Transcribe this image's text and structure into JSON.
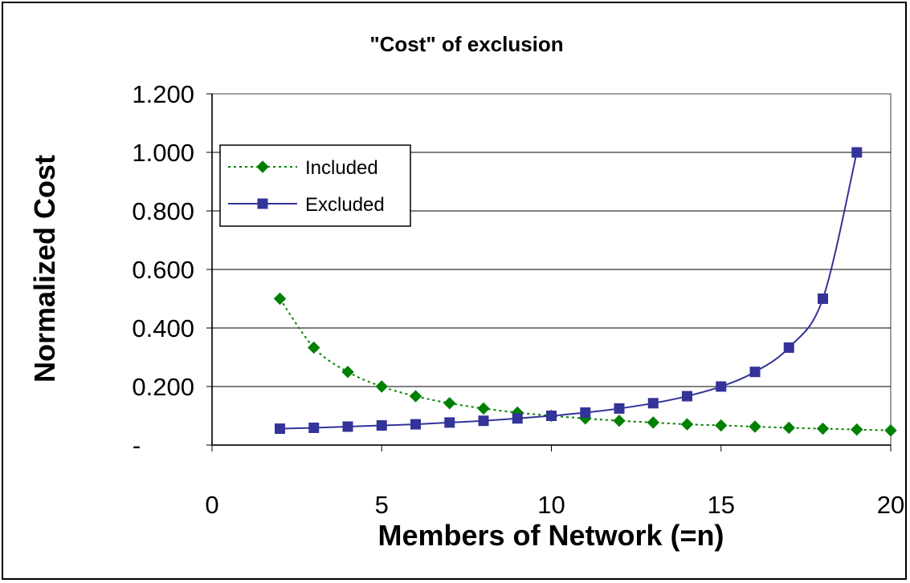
{
  "chart_data": {
    "type": "line",
    "title": "\"Cost\" of exclusion",
    "xlabel": "Members of Network (=n)",
    "ylabel": "Normalized Cost",
    "xlim": [
      0,
      20
    ],
    "ylim": [
      0,
      1.2
    ],
    "x_ticks": [
      "0",
      "5",
      "10",
      "15",
      "20"
    ],
    "y_ticks": [
      "-",
      "0.200",
      "0.400",
      "0.600",
      "0.800",
      "1.000",
      "1.200"
    ],
    "grid": true,
    "legend_position": "top-left",
    "series": [
      {
        "name": "Included",
        "color": "#008000",
        "marker": "diamond",
        "line_style": "dotted",
        "x": [
          2,
          3,
          4,
          5,
          6,
          7,
          8,
          9,
          10,
          11,
          12,
          13,
          14,
          15,
          16,
          17,
          18,
          19,
          20
        ],
        "values": [
          0.5,
          0.333,
          0.25,
          0.2,
          0.167,
          0.143,
          0.125,
          0.111,
          0.1,
          0.091,
          0.083,
          0.077,
          0.071,
          0.067,
          0.063,
          0.059,
          0.056,
          0.053,
          0.05
        ]
      },
      {
        "name": "Excluded",
        "color": "#333399",
        "marker": "square",
        "line_style": "solid",
        "x": [
          2,
          3,
          4,
          5,
          6,
          7,
          8,
          9,
          10,
          11,
          12,
          13,
          14,
          15,
          16,
          17,
          18,
          19
        ],
        "values": [
          0.056,
          0.059,
          0.063,
          0.067,
          0.071,
          0.077,
          0.083,
          0.091,
          0.1,
          0.111,
          0.125,
          0.143,
          0.167,
          0.2,
          0.25,
          0.333,
          0.5,
          1.0
        ]
      }
    ]
  }
}
